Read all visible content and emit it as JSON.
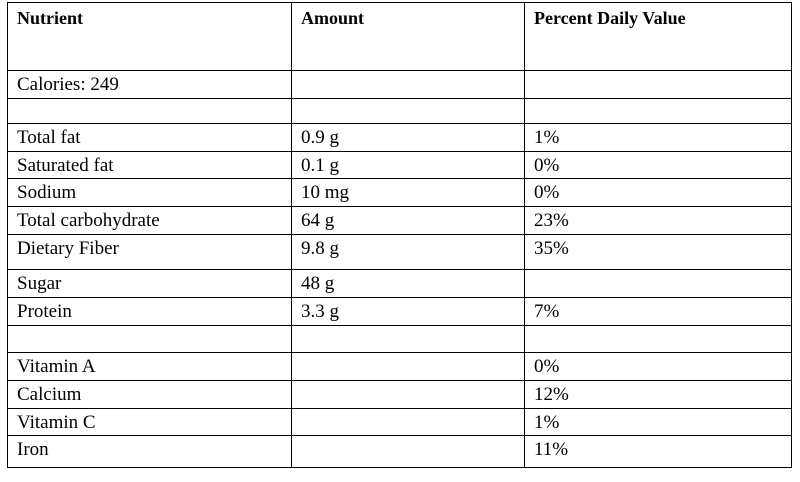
{
  "table": {
    "header": [
      "Nutrient",
      "Amount",
      "Percent Daily Value"
    ],
    "rows": [
      [
        "Calories: 249",
        null,
        null
      ],
      [
        null,
        null,
        null
      ],
      [
        "Total fat",
        "0.9 g",
        "1%"
      ],
      [
        "Saturated fat",
        "0.1 g",
        "0%"
      ],
      [
        "Sodium",
        "10 mg",
        "0%"
      ],
      [
        "Total carbohydrate",
        "64 g",
        "23%"
      ],
      [
        "Dietary Fiber",
        "9.8 g",
        "35%"
      ],
      [
        "Sugar",
        "48 g",
        null
      ],
      [
        "Protein",
        "3.3 g",
        "7%"
      ],
      [
        null,
        null,
        null
      ],
      [
        "Vitamin A",
        null,
        "0%"
      ],
      [
        "Calcium",
        null,
        "12%"
      ],
      [
        "Vitamin C",
        null,
        "1%"
      ],
      [
        "Iron",
        null,
        "11%"
      ]
    ]
  }
}
